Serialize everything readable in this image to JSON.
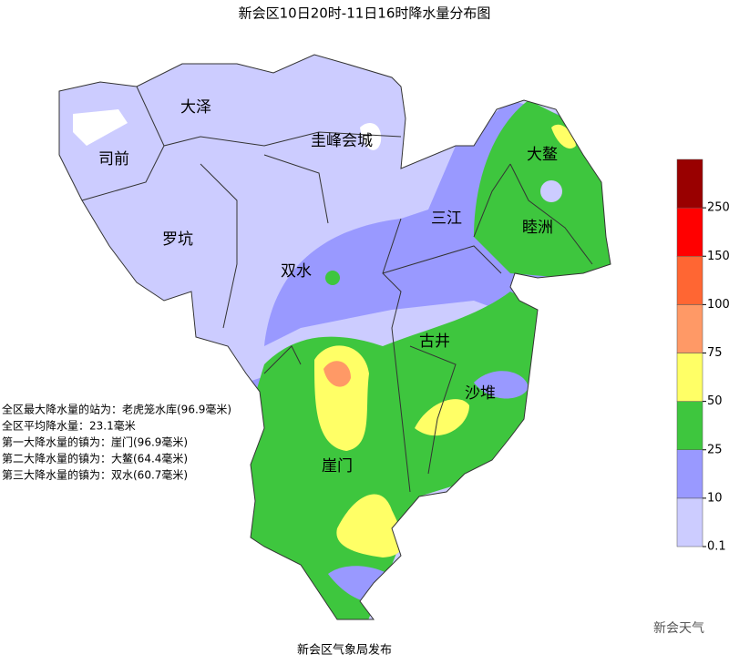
{
  "title": "新会区10日20时-11日16时降水量分布图",
  "places": [
    "大泽",
    "圭峰会城",
    "司前",
    "大鳌",
    "三江",
    "睦洲",
    "罗坑",
    "双水",
    "古井",
    "沙堆",
    "崖门"
  ],
  "stats": [
    "全区最大降水量的站为：老虎笼水库(96.9毫米)",
    "全区平均降水量：23.1毫米",
    "第一大降水量的镇为：崖门(96.9毫米)",
    "第二大降水量的镇为：大鳌(64.4毫米)",
    "第三大降水量的镇为：双水(60.7毫米)"
  ],
  "legend": {
    "colors": [
      "#ccccff",
      "#9999ff",
      "#3ec63e",
      "#ffff66",
      "#ff9966",
      "#ff6633",
      "#ff0000",
      "#990000"
    ],
    "ticks": [
      0.1,
      10,
      25,
      50,
      75,
      100,
      150,
      250
    ]
  },
  "footer": "新会区气象局发布",
  "watermark": "新会天气"
}
